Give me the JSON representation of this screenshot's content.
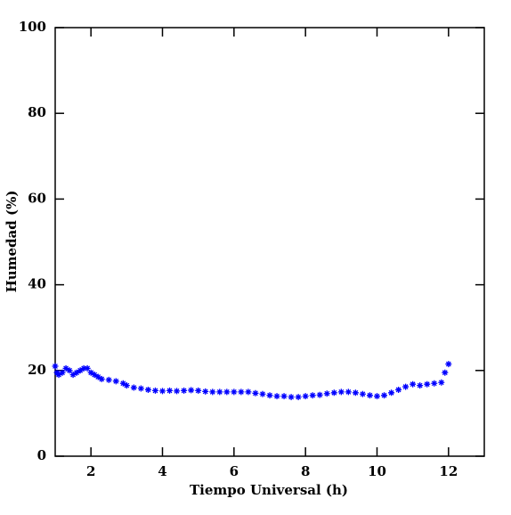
{
  "chart_data": {
    "type": "scatter",
    "xlabel": "Tiempo Universal (h)",
    "ylabel": "Humedad (%)",
    "xlim": [
      1,
      13
    ],
    "ylim": [
      0,
      100
    ],
    "xticks": [
      2,
      4,
      6,
      8,
      10,
      12
    ],
    "yticks": [
      0,
      20,
      40,
      60,
      80,
      100
    ],
    "series": [
      {
        "color": "#0000ff",
        "x": [
          1.0,
          1.05,
          1.1,
          1.2,
          1.3,
          1.4,
          1.5,
          1.6,
          1.7,
          1.8,
          1.9,
          2.0,
          2.1,
          2.2,
          2.3,
          2.5,
          2.7,
          2.9,
          3.0,
          3.2,
          3.4,
          3.6,
          3.8,
          4.0,
          4.2,
          4.4,
          4.6,
          4.8,
          5.0,
          5.2,
          5.4,
          5.6,
          5.8,
          6.0,
          6.2,
          6.4,
          6.6,
          6.8,
          7.0,
          7.2,
          7.4,
          7.6,
          7.8,
          8.0,
          8.2,
          8.4,
          8.6,
          8.8,
          9.0,
          9.2,
          9.4,
          9.6,
          9.8,
          10.0,
          10.2,
          10.4,
          10.6,
          10.8,
          11.0,
          11.2,
          11.4,
          11.6,
          11.8,
          11.9,
          12.0
        ],
        "values": [
          21,
          19.5,
          19,
          19.5,
          20.5,
          20,
          19,
          19.5,
          20,
          20.5,
          20.5,
          19.5,
          19,
          18.5,
          18,
          17.8,
          17.5,
          17,
          16.5,
          16,
          15.8,
          15.5,
          15.3,
          15.2,
          15.3,
          15.2,
          15.3,
          15.4,
          15.3,
          15.1,
          15,
          15,
          15,
          15,
          15,
          15,
          14.7,
          14.5,
          14.2,
          14,
          14,
          13.8,
          13.8,
          14,
          14.2,
          14.3,
          14.6,
          14.8,
          15,
          15,
          14.8,
          14.5,
          14.2,
          14,
          14.2,
          14.8,
          15.5,
          16.2,
          16.8,
          16.5,
          16.8,
          17,
          17.2,
          19.5,
          21.5
        ]
      }
    ]
  }
}
